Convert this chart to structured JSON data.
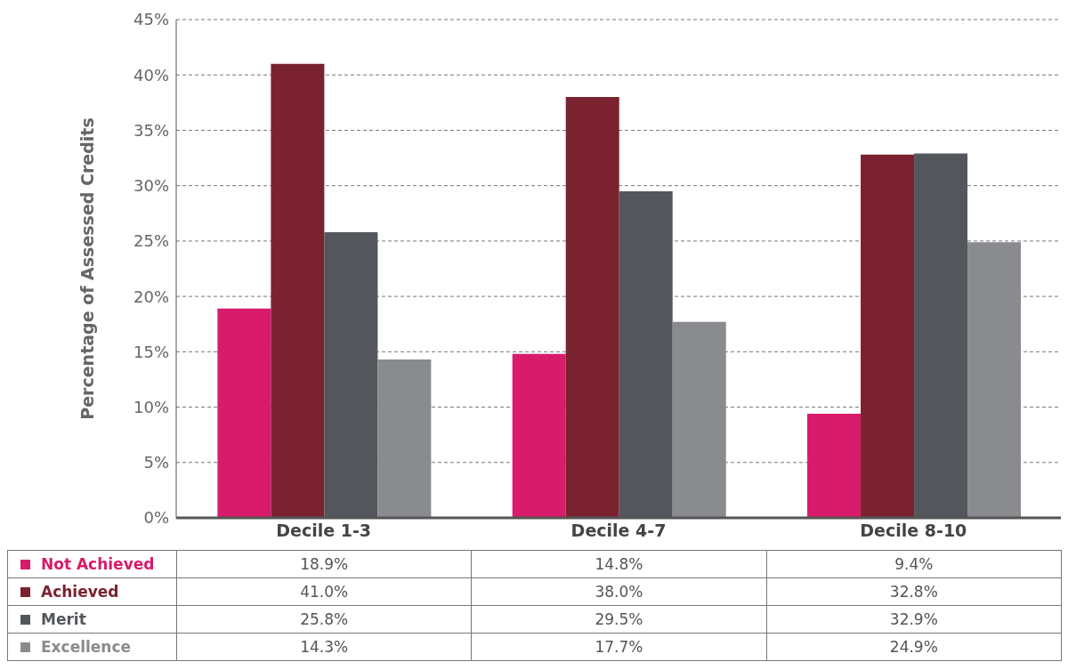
{
  "chart_data": {
    "type": "bar",
    "ylabel": "Percentage of Assessed Credits",
    "categories": [
      "Decile 1-3",
      "Decile 4-7",
      "Decile 8-10"
    ],
    "series": [
      {
        "name": "Not Achieved",
        "color": "#d81b6a",
        "values": [
          18.9,
          14.8,
          9.4
        ],
        "value_labels": [
          "18.9%",
          "14.8%",
          "9.4%"
        ]
      },
      {
        "name": "Achieved",
        "color": "#7b2230",
        "values": [
          41.0,
          38.0,
          32.8
        ],
        "value_labels": [
          "41.0%",
          "38.0%",
          "32.8%"
        ]
      },
      {
        "name": "Merit",
        "color": "#53565a",
        "values": [
          25.8,
          29.5,
          32.9
        ],
        "value_labels": [
          "25.8%",
          "29.5%",
          "32.9%"
        ]
      },
      {
        "name": "Excellence",
        "color": "#8a8b8e",
        "values": [
          14.3,
          17.7,
          24.9
        ],
        "value_labels": [
          "14.3%",
          "17.7%",
          "24.9%"
        ]
      }
    ],
    "ylim": [
      0,
      45
    ],
    "yticks": [
      {
        "value": 0,
        "label": "0%"
      },
      {
        "value": 5,
        "label": "5%"
      },
      {
        "value": 10,
        "label": "10%"
      },
      {
        "value": 15,
        "label": "15%"
      },
      {
        "value": 20,
        "label": "20%"
      },
      {
        "value": 25,
        "label": "25%"
      },
      {
        "value": 30,
        "label": "30%"
      },
      {
        "value": 35,
        "label": "35%"
      },
      {
        "value": 40,
        "label": "40%"
      },
      {
        "value": 45,
        "label": "45%"
      }
    ],
    "grid": "y",
    "legend": "bottom left"
  }
}
